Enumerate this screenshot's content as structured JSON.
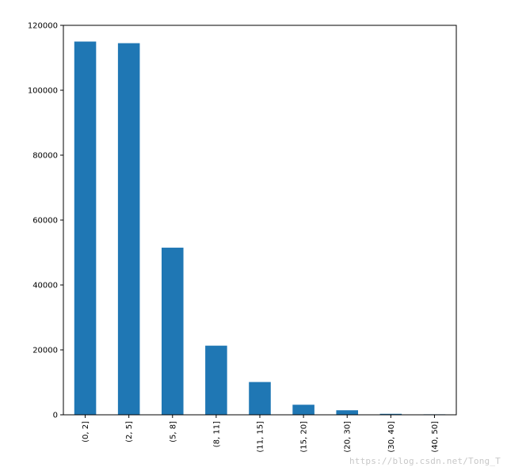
{
  "chart_data": {
    "type": "bar",
    "title": "",
    "xlabel": "",
    "ylabel": "",
    "categories": [
      "(0, 2]",
      "(2, 5]",
      "(5, 8]",
      "(8, 11]",
      "(11, 15]",
      "(15, 20]",
      "(20, 30]",
      "(30, 40]",
      "(40, 50]"
    ],
    "values": [
      115000,
      114500,
      51500,
      21300,
      10100,
      3100,
      1400,
      300,
      150
    ],
    "ylim": [
      0,
      120000
    ],
    "yticks": [
      0,
      20000,
      40000,
      60000,
      80000,
      100000,
      120000
    ],
    "ytick_labels": [
      "0",
      "20000",
      "40000",
      "60000",
      "80000",
      "100000",
      "120000"
    ],
    "grid": false,
    "legend": "none",
    "bar_color": "#1f77b4"
  },
  "watermark": "https://blog.csdn.net/Tong_T"
}
